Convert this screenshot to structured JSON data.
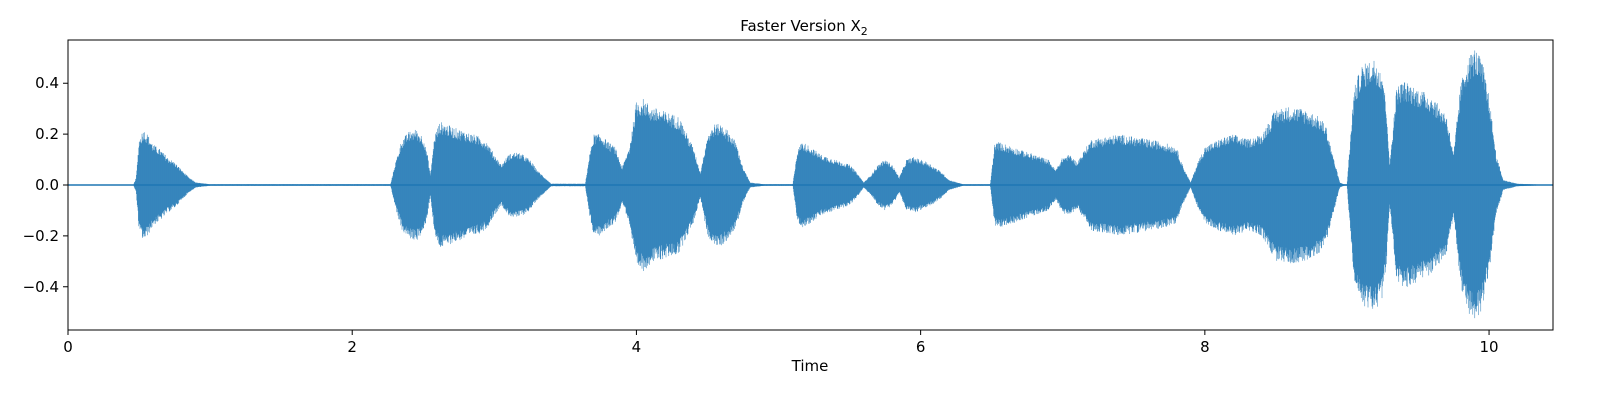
{
  "chart_data": {
    "type": "area",
    "title": "Faster Version X",
    "title_subscript": "2",
    "xlabel": "Time",
    "ylabel": "",
    "xlim": [
      0,
      10.45
    ],
    "ylim": [
      -0.57,
      0.57
    ],
    "x_ticks": [
      0,
      2,
      4,
      6,
      8,
      10
    ],
    "y_ticks": [
      -0.4,
      -0.2,
      0.0,
      0.2,
      0.4
    ],
    "x_tick_labels": [
      "0",
      "2",
      "4",
      "6",
      "8",
      "10"
    ],
    "y_tick_labels": [
      "−0.4",
      "−0.2",
      "0.0",
      "0.2",
      "0.4"
    ],
    "grid": false,
    "color": "#1f77b4",
    "series": [
      {
        "envelope_time": [
          0,
          0.46,
          0.48,
          0.5,
          0.53,
          0.56,
          0.6,
          0.65,
          0.7,
          0.75,
          0.8,
          0.85,
          0.9,
          1.0,
          2.27,
          2.3,
          2.35,
          2.4,
          2.45,
          2.5,
          2.53,
          2.55,
          2.58,
          2.62,
          2.7,
          2.8,
          2.9,
          2.95,
          3.0,
          3.05,
          3.1,
          3.15,
          3.2,
          3.25,
          3.3,
          3.4,
          3.64,
          3.67,
          3.7,
          3.75,
          3.8,
          3.85,
          3.9,
          3.95,
          4.0,
          4.05,
          4.1,
          4.2,
          4.3,
          4.4,
          4.45,
          4.5,
          4.55,
          4.6,
          4.65,
          4.7,
          4.75,
          4.8,
          4.9,
          5.1,
          5.13,
          5.16,
          5.2,
          5.3,
          5.4,
          5.5,
          5.55,
          5.6,
          5.65,
          5.7,
          5.75,
          5.8,
          5.85,
          5.9,
          5.95,
          6.0,
          6.05,
          6.1,
          6.15,
          6.2,
          6.3,
          6.49,
          6.52,
          6.55,
          6.6,
          6.7,
          6.8,
          6.9,
          6.95,
          7.0,
          7.05,
          7.1,
          7.2,
          7.3,
          7.4,
          7.5,
          7.6,
          7.7,
          7.8,
          7.85,
          7.9,
          7.95,
          8.0,
          8.1,
          8.2,
          8.3,
          8.4,
          8.5,
          8.6,
          8.7,
          8.8,
          8.85,
          8.9,
          8.95,
          8.98,
          9.0,
          9.05,
          9.1,
          9.2,
          9.25,
          9.28,
          9.3,
          9.35,
          9.4,
          9.5,
          9.6,
          9.65,
          9.7,
          9.75,
          9.8,
          9.85,
          9.9,
          9.95,
          10.0,
          10.05,
          10.1,
          10.2,
          10.3,
          10.45
        ],
        "envelope_amplitude": [
          0,
          0,
          0.03,
          0.18,
          0.22,
          0.2,
          0.16,
          0.14,
          0.11,
          0.09,
          0.06,
          0.03,
          0.01,
          0.003,
          0.003,
          0.08,
          0.18,
          0.21,
          0.22,
          0.19,
          0.12,
          0.04,
          0.2,
          0.25,
          0.23,
          0.21,
          0.19,
          0.17,
          0.12,
          0.08,
          0.12,
          0.13,
          0.12,
          0.1,
          0.06,
          0.005,
          0.005,
          0.12,
          0.2,
          0.2,
          0.17,
          0.15,
          0.07,
          0.15,
          0.33,
          0.34,
          0.31,
          0.29,
          0.27,
          0.15,
          0.05,
          0.2,
          0.24,
          0.24,
          0.21,
          0.17,
          0.07,
          0.01,
          0.003,
          0.003,
          0.13,
          0.17,
          0.16,
          0.12,
          0.1,
          0.08,
          0.05,
          0.01,
          0.04,
          0.08,
          0.1,
          0.08,
          0.03,
          0.1,
          0.11,
          0.1,
          0.09,
          0.07,
          0.05,
          0.02,
          0.003,
          0.003,
          0.16,
          0.17,
          0.16,
          0.14,
          0.12,
          0.1,
          0.06,
          0.11,
          0.12,
          0.09,
          0.18,
          0.19,
          0.2,
          0.19,
          0.18,
          0.17,
          0.15,
          0.07,
          0.01,
          0.09,
          0.15,
          0.18,
          0.2,
          0.18,
          0.2,
          0.3,
          0.31,
          0.3,
          0.27,
          0.24,
          0.12,
          0.01,
          0.003,
          0.003,
          0.38,
          0.47,
          0.5,
          0.45,
          0.3,
          0.08,
          0.39,
          0.41,
          0.38,
          0.35,
          0.31,
          0.28,
          0.12,
          0.4,
          0.5,
          0.54,
          0.49,
          0.35,
          0.12,
          0.02,
          0.005,
          0.003,
          0.0
        ]
      }
    ]
  }
}
